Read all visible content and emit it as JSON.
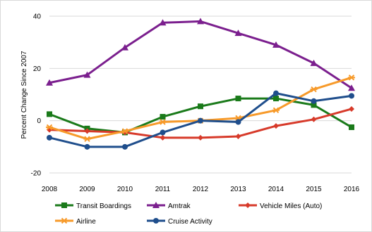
{
  "chart_data": {
    "type": "line",
    "x": [
      "2008",
      "2009",
      "2010",
      "2011",
      "2012",
      "2013",
      "2014",
      "2015",
      "2016"
    ],
    "ylabel": "Percent Change Since 2007",
    "xlabel": "",
    "title": "",
    "ylim": [
      -20,
      40
    ],
    "yticks": [
      "40",
      "20",
      "0",
      "-20"
    ],
    "grid": "horizontal",
    "legend_position": "bottom",
    "series": [
      {
        "name": "Transit Boardings",
        "color": "#1a7a1a",
        "marker": "square",
        "values": [
          2.5,
          -3,
          -4.5,
          1.5,
          5.5,
          8.5,
          8.5,
          6,
          -2.5
        ]
      },
      {
        "name": "Amtrak",
        "color": "#7b1f8e",
        "marker": "triangle",
        "values": [
          14.5,
          17.5,
          28,
          37.5,
          38,
          33.5,
          29,
          22,
          12.5
        ]
      },
      {
        "name": "Vehicle Miles (Auto)",
        "color": "#d73a2a",
        "marker": "diamond",
        "values": [
          -3.5,
          -4,
          -4.5,
          -6.5,
          -6.5,
          -6,
          -2,
          0.5,
          4.5
        ]
      },
      {
        "name": "Airline",
        "color": "#f79a2a",
        "marker": "asterisk",
        "values": [
          -2.5,
          -7,
          -4,
          -0.5,
          0,
          1,
          4,
          12,
          16.5
        ]
      },
      {
        "name": "Cruise Activity",
        "color": "#1f4e8c",
        "marker": "circle",
        "values": [
          -6.5,
          -10,
          -10,
          -4.5,
          0,
          -0.5,
          10.5,
          7.5,
          9.5
        ]
      }
    ]
  }
}
